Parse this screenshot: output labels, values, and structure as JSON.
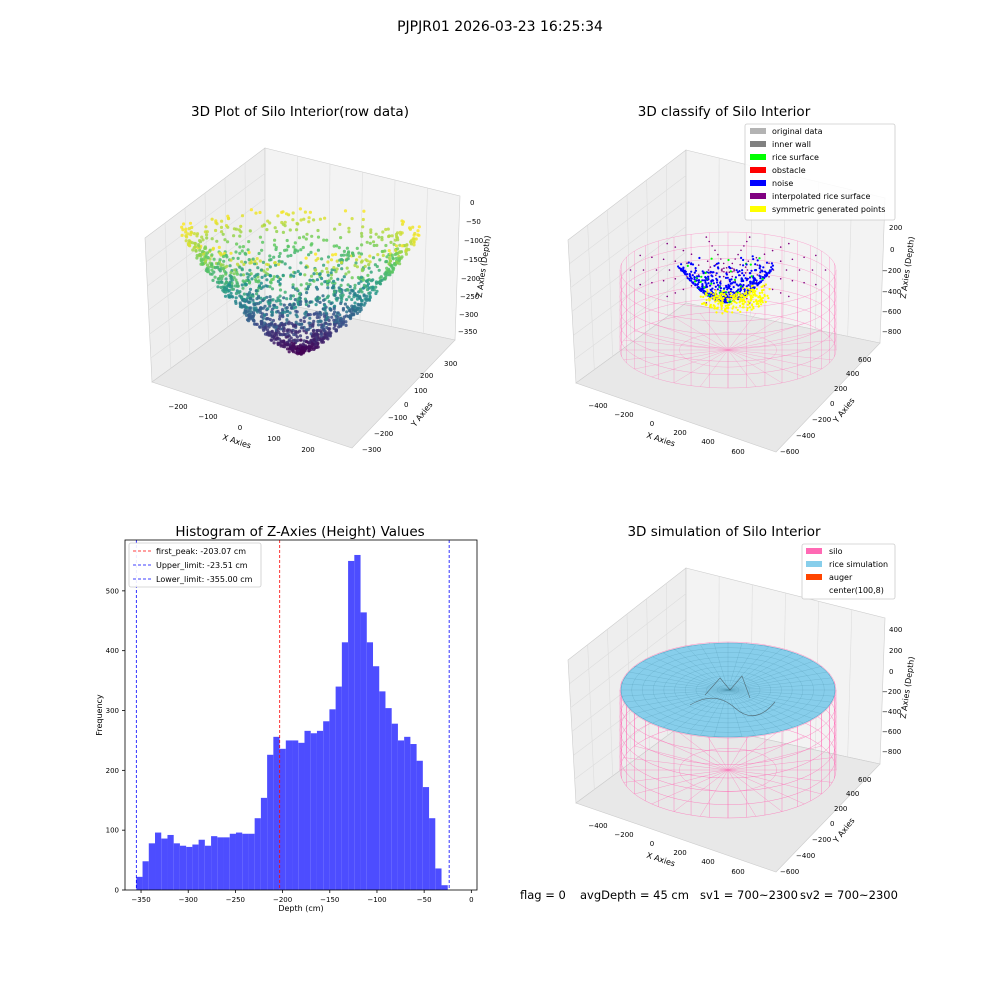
{
  "figure_title": "PJPJR01 2026-03-23 16:25:34",
  "status": {
    "flag": "flag = 0",
    "avg_depth": "avgDepth = 45 cm",
    "sv1": "sv1 = 700~2300",
    "sv2": "sv2 = 700~2300"
  },
  "chart_data": [
    {
      "type": "scatter",
      "projection": "3d",
      "title": "3D Plot of Silo Interior(row data)",
      "xlabel": "X Axies",
      "ylabel": "Y Axies",
      "zlabel": "Z Axies (Depth)",
      "x_ticks": [
        "−200",
        "−100",
        "0",
        "100",
        "200"
      ],
      "y_ticks": [
        "−300",
        "−200",
        "−100",
        "0",
        "100",
        "200",
        "300"
      ],
      "z_ticks": [
        "0",
        "−50",
        "−100",
        "−150",
        "−200",
        "−250",
        "−300",
        "−350"
      ],
      "colormap": "viridis",
      "grid": true
    },
    {
      "type": "scatter",
      "projection": "3d",
      "title": "3D classify of Silo Interior",
      "xlabel": "X Axies",
      "ylabel": "Y Axies",
      "zlabel": "Z Axies (Depth)",
      "x_ticks": [
        "−400",
        "−200",
        "0",
        "200",
        "400",
        "600"
      ],
      "y_ticks": [
        "−600",
        "−400",
        "−200",
        "0",
        "200",
        "400",
        "600"
      ],
      "z_ticks": [
        "200",
        "0",
        "−200",
        "−400",
        "−600",
        "−800"
      ],
      "legend_position": "top-right",
      "legend": [
        {
          "label": "original data",
          "color": "#b3b3b3"
        },
        {
          "label": "inner wall",
          "color": "#808080"
        },
        {
          "label": "rice surface",
          "color": "#00ff00"
        },
        {
          "label": "obstacle",
          "color": "#ff0000"
        },
        {
          "label": "noise",
          "color": "#0000ff"
        },
        {
          "label": "interpolated rice surface",
          "color": "#800080"
        },
        {
          "label": "symmetric generated points",
          "color": "#ffff00"
        }
      ],
      "grid": true
    },
    {
      "type": "bar",
      "subtype": "histogram",
      "title": "Histogram of Z-Axies (Height) Values",
      "xlabel": "Depth (cm)",
      "ylabel": "Frequency",
      "xlim": [
        -367,
        6
      ],
      "ylim": [
        0,
        585
      ],
      "x_ticks": [
        -350,
        -300,
        -250,
        -200,
        -150,
        -100,
        -50,
        0
      ],
      "x_tick_labels": [
        "−350",
        "−300",
        "−250",
        "−200",
        "−150",
        "−100",
        "−50",
        "0"
      ],
      "y_ticks": [
        0,
        100,
        200,
        300,
        400,
        500
      ],
      "bar_color": "#4d4dff",
      "bin_start": -355,
      "bin_width": 6.6,
      "values": [
        22,
        48,
        78,
        96,
        86,
        92,
        78,
        74,
        72,
        76,
        84,
        74,
        90,
        88,
        88,
        94,
        96,
        94,
        94,
        120,
        154,
        226,
        256,
        236,
        250,
        250,
        246,
        266,
        262,
        266,
        282,
        302,
        340,
        414,
        550,
        560,
        464,
        414,
        374,
        332,
        304,
        278,
        250,
        256,
        244,
        216,
        172,
        120,
        36,
        8
      ],
      "legend_position": "top-left",
      "reference_lines": [
        {
          "label": "first_peak: -203.07 cm",
          "x": -203.07,
          "color": "#ff0000"
        },
        {
          "label": "Upper_limit: -23.51 cm",
          "x": -23.51,
          "color": "#0000ff"
        },
        {
          "label": "Lower_limit: -355.00 cm",
          "x": -355.0,
          "color": "#0000ff"
        }
      ],
      "grid": false
    },
    {
      "type": "surface",
      "projection": "3d",
      "title": "3D simulation of Silo Interior",
      "xlabel": "X Axies",
      "ylabel": "Y Axies",
      "zlabel": "Z Axies (Depth)",
      "x_ticks": [
        "−400",
        "−200",
        "0",
        "200",
        "400",
        "600"
      ],
      "y_ticks": [
        "−600",
        "−400",
        "−200",
        "0",
        "200",
        "400",
        "600"
      ],
      "z_ticks": [
        "400",
        "200",
        "0",
        "−200",
        "−400",
        "−600",
        "−800"
      ],
      "legend_position": "top-right",
      "legend": [
        {
          "label": "silo",
          "color": "#ff69b4"
        },
        {
          "label": "rice simulation",
          "color": "#87ceeb"
        },
        {
          "label": "auger",
          "color": "#ff4500"
        },
        {
          "label": "center(100,8)",
          "color": "#ffffff"
        }
      ],
      "grid": true
    }
  ]
}
